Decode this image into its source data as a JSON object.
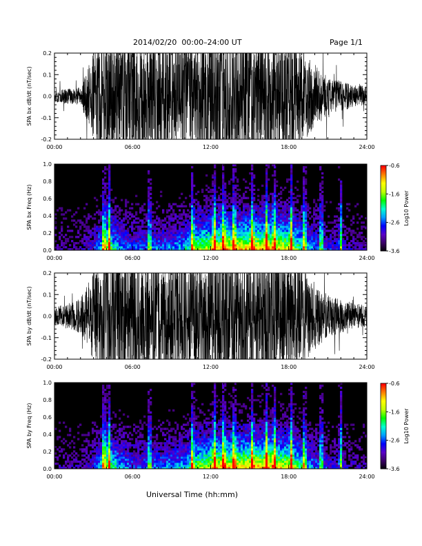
{
  "header": {
    "title": "2014/02/20  00:00–24:00 UT",
    "page": "Page 1/1"
  },
  "footer": {
    "xlabel": "Universal Time (hh:mm)"
  },
  "colors": {
    "trace": "#000000",
    "background": "#000000",
    "colormap": [
      "#000000",
      "#3a0064",
      "#5a00c8",
      "#0000ff",
      "#00a0ff",
      "#00ffd0",
      "#00ff00",
      "#c0ff00",
      "#ffff00",
      "#ff8000",
      "#ff0000"
    ]
  },
  "chart_data": [
    {
      "type": "line",
      "name": "bx-waveform",
      "ylabel": "SPA bx dB/dt (nT/sec)",
      "xlim": [
        0,
        24
      ],
      "ylim": [
        -0.2,
        0.2
      ],
      "xticks": [
        "00:00",
        "06:00",
        "12:00",
        "18:00",
        "24:00"
      ],
      "yticks": [
        "-0.2",
        "-0.1",
        "0.0",
        "0.1",
        "0.2"
      ],
      "amplitude_envelope": {
        "hours": [
          0,
          2,
          3.3,
          4,
          6,
          8,
          10,
          12,
          14,
          16,
          18,
          19,
          20,
          21,
          22,
          23,
          24
        ],
        "half_amplitude": [
          0.03,
          0.04,
          0.25,
          0.3,
          0.3,
          0.28,
          0.27,
          0.3,
          0.3,
          0.3,
          0.28,
          0.22,
          0.15,
          0.09,
          0.07,
          0.05,
          0.05
        ]
      }
    },
    {
      "type": "heatmap",
      "name": "bx-spectrogram",
      "ylabel": "SPA bx Freq (Hz)",
      "colorbar_label": "Log10 Power",
      "xlim": [
        0,
        24
      ],
      "ylim": [
        0,
        1.0
      ],
      "clim": [
        -3.6,
        -0.6
      ],
      "xticks": [
        "00:00",
        "06:00",
        "12:00",
        "18:00",
        "24:00"
      ],
      "yticks": [
        "0.0",
        "0.2",
        "0.4",
        "0.6",
        "0.8",
        "1.0"
      ],
      "cticks": [
        "-0.6",
        "-1.6",
        "-2.6",
        "-3.6"
      ],
      "activity_profile": {
        "hours": [
          0,
          2,
          3,
          4,
          5,
          6,
          8,
          10,
          11,
          12,
          13,
          14,
          16,
          18,
          19,
          20,
          21,
          22,
          23,
          24
        ],
        "level": [
          0.15,
          0.18,
          0.3,
          0.7,
          0.5,
          0.35,
          0.4,
          0.5,
          0.75,
          0.85,
          0.95,
          0.9,
          0.95,
          0.85,
          0.6,
          0.4,
          0.3,
          0.25,
          0.2,
          0.18
        ]
      }
    },
    {
      "type": "line",
      "name": "by-waveform",
      "ylabel": "SPA by dB/dt (nT/sec)",
      "xlim": [
        0,
        24
      ],
      "ylim": [
        -0.2,
        0.2
      ],
      "xticks": [
        "00:00",
        "06:00",
        "12:00",
        "18:00",
        "24:00"
      ],
      "yticks": [
        "-0.2",
        "-0.1",
        "0.0",
        "0.1",
        "0.2"
      ],
      "amplitude_envelope": {
        "hours": [
          0,
          1,
          2,
          3.3,
          4,
          6,
          8,
          10,
          12,
          14,
          16,
          18,
          19,
          20,
          21,
          22,
          23,
          24
        ],
        "half_amplitude": [
          0.04,
          0.06,
          0.08,
          0.25,
          0.3,
          0.3,
          0.28,
          0.27,
          0.3,
          0.3,
          0.3,
          0.27,
          0.22,
          0.16,
          0.1,
          0.08,
          0.06,
          0.05
        ]
      }
    },
    {
      "type": "heatmap",
      "name": "by-spectrogram",
      "ylabel": "SPA by Freq (Hz)",
      "colorbar_label": "Log10 Power",
      "xlim": [
        0,
        24
      ],
      "ylim": [
        0,
        1.0
      ],
      "clim": [
        -3.6,
        -0.6
      ],
      "xticks": [
        "00:00",
        "06:00",
        "12:00",
        "18:00",
        "24:00"
      ],
      "yticks": [
        "0.0",
        "0.2",
        "0.4",
        "0.6",
        "0.8",
        "1.0"
      ],
      "cticks": [
        "-0.6",
        "-1.6",
        "-2.6",
        "-3.6"
      ],
      "activity_profile": {
        "hours": [
          0,
          2,
          3,
          4,
          5,
          6,
          8,
          10,
          11,
          12,
          13,
          14,
          16,
          18,
          19,
          20,
          21,
          22,
          23,
          24
        ],
        "level": [
          0.15,
          0.18,
          0.3,
          0.75,
          0.5,
          0.35,
          0.4,
          0.5,
          0.75,
          0.85,
          0.95,
          0.9,
          0.95,
          0.85,
          0.6,
          0.4,
          0.3,
          0.25,
          0.2,
          0.18
        ]
      }
    }
  ]
}
